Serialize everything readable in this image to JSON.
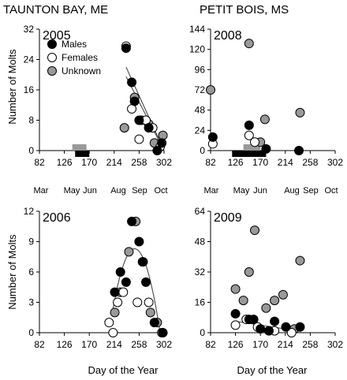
{
  "figure": {
    "sites": [
      "TAUNTON BAY, ME",
      "PETIT BOIS, MS"
    ],
    "ylabel": "Number of Molts",
    "xlabel": "Day of the Year",
    "months": [
      "Mar",
      "May",
      "Jun",
      "Aug",
      "Sep",
      "Oct"
    ],
    "legend": [
      "Males",
      "Females",
      "Unknown"
    ],
    "colors": {
      "male": "#000000",
      "female": "#ffffff",
      "unknown": "#999999",
      "line": "#555555"
    }
  },
  "chart_data": [
    {
      "type": "scatter",
      "title": "2005",
      "site": "TAUNTON BAY, ME",
      "xlim": [
        82,
        302
      ],
      "ylim": [
        0,
        32
      ],
      "xticks": [
        82,
        126,
        170,
        214,
        258,
        302
      ],
      "yticks": [
        0,
        8,
        16,
        24,
        32
      ],
      "series": [
        {
          "name": "Males",
          "points": [
            [
              235,
              27
            ],
            [
              245,
              18
            ],
            [
              250,
              13
            ],
            [
              258,
              8
            ],
            [
              275,
              6
            ],
            [
              290,
              0
            ],
            [
              298,
              2
            ]
          ]
        },
        {
          "name": "Females",
          "points": [
            [
              235,
              27.5
            ],
            [
              245,
              11
            ],
            [
              258,
              3
            ],
            [
              270,
              8
            ],
            [
              282,
              6
            ],
            [
              295,
              1
            ]
          ]
        },
        {
          "name": "Unknown",
          "points": [
            [
              232,
              6
            ],
            [
              250,
              14
            ],
            [
              262,
              8
            ],
            [
              275,
              7
            ],
            [
              285,
              2
            ],
            [
              300,
              4
            ]
          ]
        }
      ],
      "bars": [
        {
          "color": "unknown",
          "x": [
            140,
            165
          ]
        },
        {
          "color": "male",
          "x": [
            145,
            170
          ]
        }
      ],
      "trendlines": [
        {
          "x": [
            235,
            302
          ],
          "y": [
            22,
            0
          ]
        },
        {
          "x": [
            235,
            302
          ],
          "y": [
            19.5,
            0
          ]
        }
      ]
    },
    {
      "type": "scatter",
      "title": "2008",
      "site": "PETIT BOIS, MS",
      "xlim": [
        82,
        302
      ],
      "ylim": [
        0,
        144
      ],
      "xticks": [
        82,
        126,
        170,
        214,
        258,
        302
      ],
      "yticks": [
        0,
        24,
        48,
        72,
        96,
        120,
        144
      ],
      "series": [
        {
          "name": "Males",
          "points": [
            [
              86,
              16
            ],
            [
              150,
              30
            ],
            [
              180,
              2
            ],
            [
              238,
              0
            ]
          ]
        },
        {
          "name": "Females",
          "points": [
            [
              86,
              8
            ],
            [
              150,
              18
            ],
            [
              160,
              10
            ]
          ]
        },
        {
          "name": "Unknown",
          "points": [
            [
              82,
              72
            ],
            [
              150,
              127
            ],
            [
              170,
              10
            ],
            [
              178,
              37
            ],
            [
              240,
              45
            ]
          ]
        }
      ],
      "bars": [
        {
          "color": "unknown",
          "x": [
            140,
            170
          ]
        },
        {
          "color": "male",
          "x": [
            120,
            180
          ]
        }
      ],
      "trendlines": []
    },
    {
      "type": "scatter",
      "title": "2006",
      "site": "TAUNTON BAY, ME",
      "xlim": [
        82,
        302
      ],
      "ylim": [
        0,
        12
      ],
      "xticks": [
        82,
        126,
        170,
        214,
        258,
        302
      ],
      "yticks": [
        0,
        3,
        6,
        9,
        12
      ],
      "series": [
        {
          "name": "Males",
          "points": [
            [
              215,
              4
            ],
            [
              225,
              6
            ],
            [
              235,
              5
            ],
            [
              245,
              11
            ],
            [
              258,
              9
            ],
            [
              264,
              7
            ],
            [
              270,
              5
            ],
            [
              285,
              1
            ],
            [
              300,
              0
            ]
          ]
        },
        {
          "name": "Females",
          "points": [
            [
              205,
              1
            ],
            [
              212,
              0
            ],
            [
              220,
              3
            ],
            [
              230,
              4
            ],
            [
              255,
              3
            ],
            [
              275,
              3
            ],
            [
              298,
              0
            ]
          ]
        },
        {
          "name": "Unknown",
          "points": [
            [
              215,
              2
            ],
            [
              225,
              4
            ],
            [
              240,
              8
            ],
            [
              252,
              11
            ],
            [
              265,
              7
            ],
            [
              278,
              2
            ],
            [
              290,
              1
            ]
          ]
        }
      ],
      "bars": [],
      "trendlines": [
        {
          "curve": "parabola",
          "x": [
            210,
            300
          ],
          "peak": [
            250,
            8.3
          ]
        }
      ]
    },
    {
      "type": "scatter",
      "title": "2009",
      "site": "PETIT BOIS, MS",
      "xlim": [
        82,
        302
      ],
      "ylim": [
        0,
        64
      ],
      "xticks": [
        82,
        126,
        170,
        214,
        258,
        302
      ],
      "yticks": [
        0,
        16,
        32,
        48,
        64
      ],
      "series": [
        {
          "name": "Males",
          "points": [
            [
              126,
              10
            ],
            [
              150,
              7
            ],
            [
              158,
              7
            ],
            [
              170,
              2
            ],
            [
              185,
              1
            ],
            [
              195,
              6
            ],
            [
              215,
              3
            ],
            [
              240,
              3
            ]
          ]
        },
        {
          "name": "Females",
          "points": [
            [
              126,
              4
            ],
            [
              145,
              7
            ],
            [
              165,
              3
            ],
            [
              195,
              1
            ],
            [
              225,
              0
            ]
          ]
        },
        {
          "name": "Unknown",
          "points": [
            [
              126,
              23
            ],
            [
              140,
              17
            ],
            [
              150,
              32
            ],
            [
              160,
              54
            ],
            [
              180,
              13
            ],
            [
              195,
              17
            ],
            [
              210,
              20
            ],
            [
              230,
              2
            ],
            [
              240,
              38
            ]
          ]
        }
      ],
      "bars": [],
      "trendlines": [
        {
          "x": [
            126,
            240
          ],
          "y": [
            6,
            0.8
          ]
        }
      ]
    }
  ]
}
